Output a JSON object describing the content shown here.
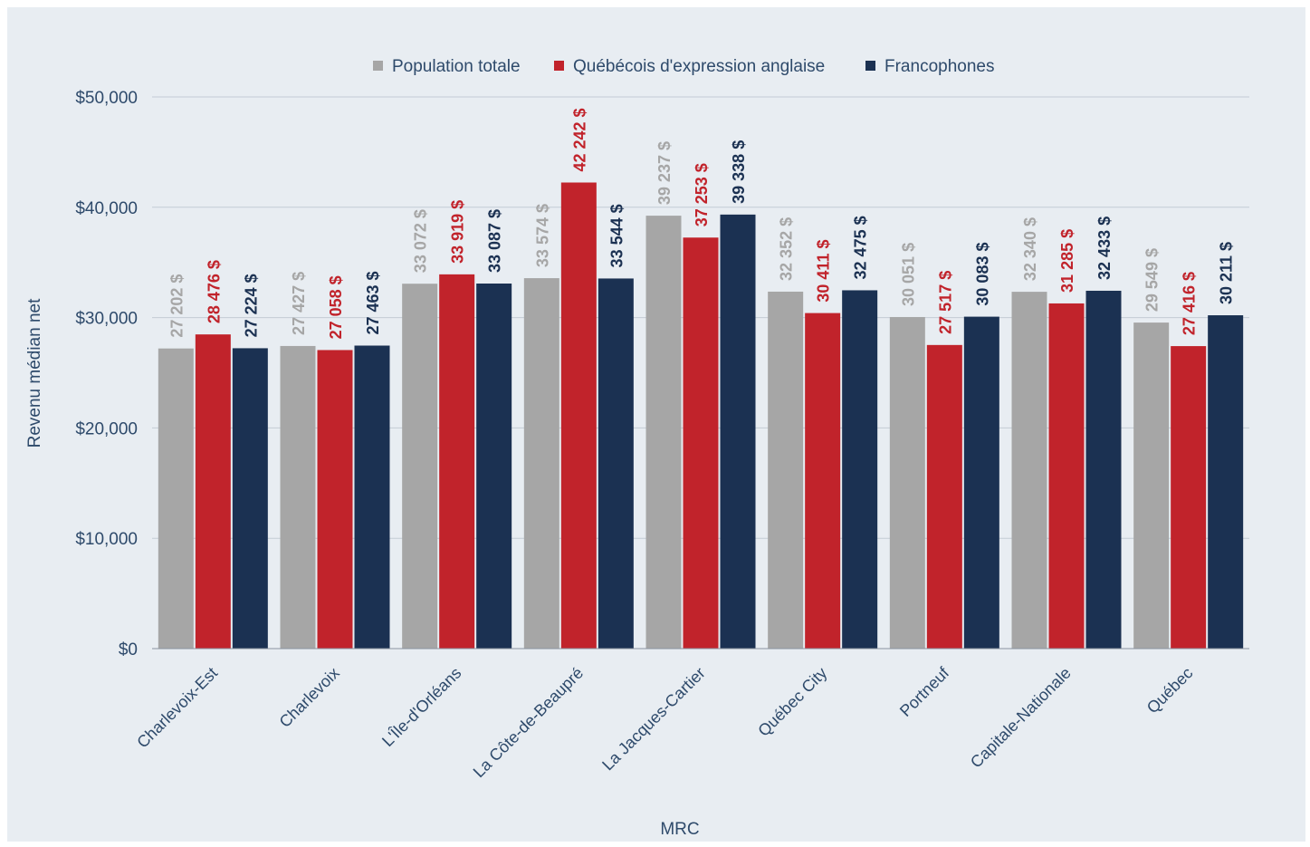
{
  "chart_data": {
    "type": "bar",
    "title": "",
    "xlabel": "MRC",
    "ylabel": "Revenu médian net",
    "ylim": [
      0,
      50000
    ],
    "yticks": [
      0,
      10000,
      20000,
      30000,
      40000,
      50000
    ],
    "ytick_labels": [
      "$0",
      "$10,000",
      "$20,000",
      "$30,000",
      "$40,000",
      "$50,000"
    ],
    "grid": true,
    "legend_position": "top",
    "categories": [
      "Charlevoix-Est",
      "Charlevoix",
      "L'Île-d'Orléans",
      "La Côte-de-Beaupré",
      "La Jacques-Cartier",
      "Québec City",
      "Portneuf",
      "Capitale-Nationale",
      "Québec"
    ],
    "series": [
      {
        "name": "Population totale",
        "color": "#a6a6a6",
        "values": [
          27202,
          27427,
          33072,
          33574,
          39237,
          32352,
          30051,
          32340,
          29549
        ],
        "labels": [
          "27 202 $",
          "27 427 $",
          "33 072 $",
          "33 574 $",
          "39 237 $",
          "32 352 $",
          "30 051 $",
          "32 340 $",
          "29 549 $"
        ]
      },
      {
        "name": "Québécois d'expression anglaise",
        "color": "#c1232b",
        "values": [
          28476,
          27058,
          33919,
          42242,
          37253,
          30411,
          27517,
          31285,
          27416
        ],
        "labels": [
          "28 476 $",
          "27 058 $",
          "33 919 $",
          "42 242 $",
          "37 253 $",
          "30 411 $",
          "27 517 $",
          "31 285 $",
          "27 416 $"
        ]
      },
      {
        "name": "Francophones",
        "color": "#1b3152",
        "values": [
          27224,
          27463,
          33087,
          33544,
          39338,
          32475,
          30083,
          32433,
          30211
        ],
        "labels": [
          "27 224 $",
          "27 463 $",
          "33 087 $",
          "33 544 $",
          "39 338 $",
          "32 475 $",
          "30 083 $",
          "32 433 $",
          "30 211 $"
        ]
      }
    ]
  }
}
